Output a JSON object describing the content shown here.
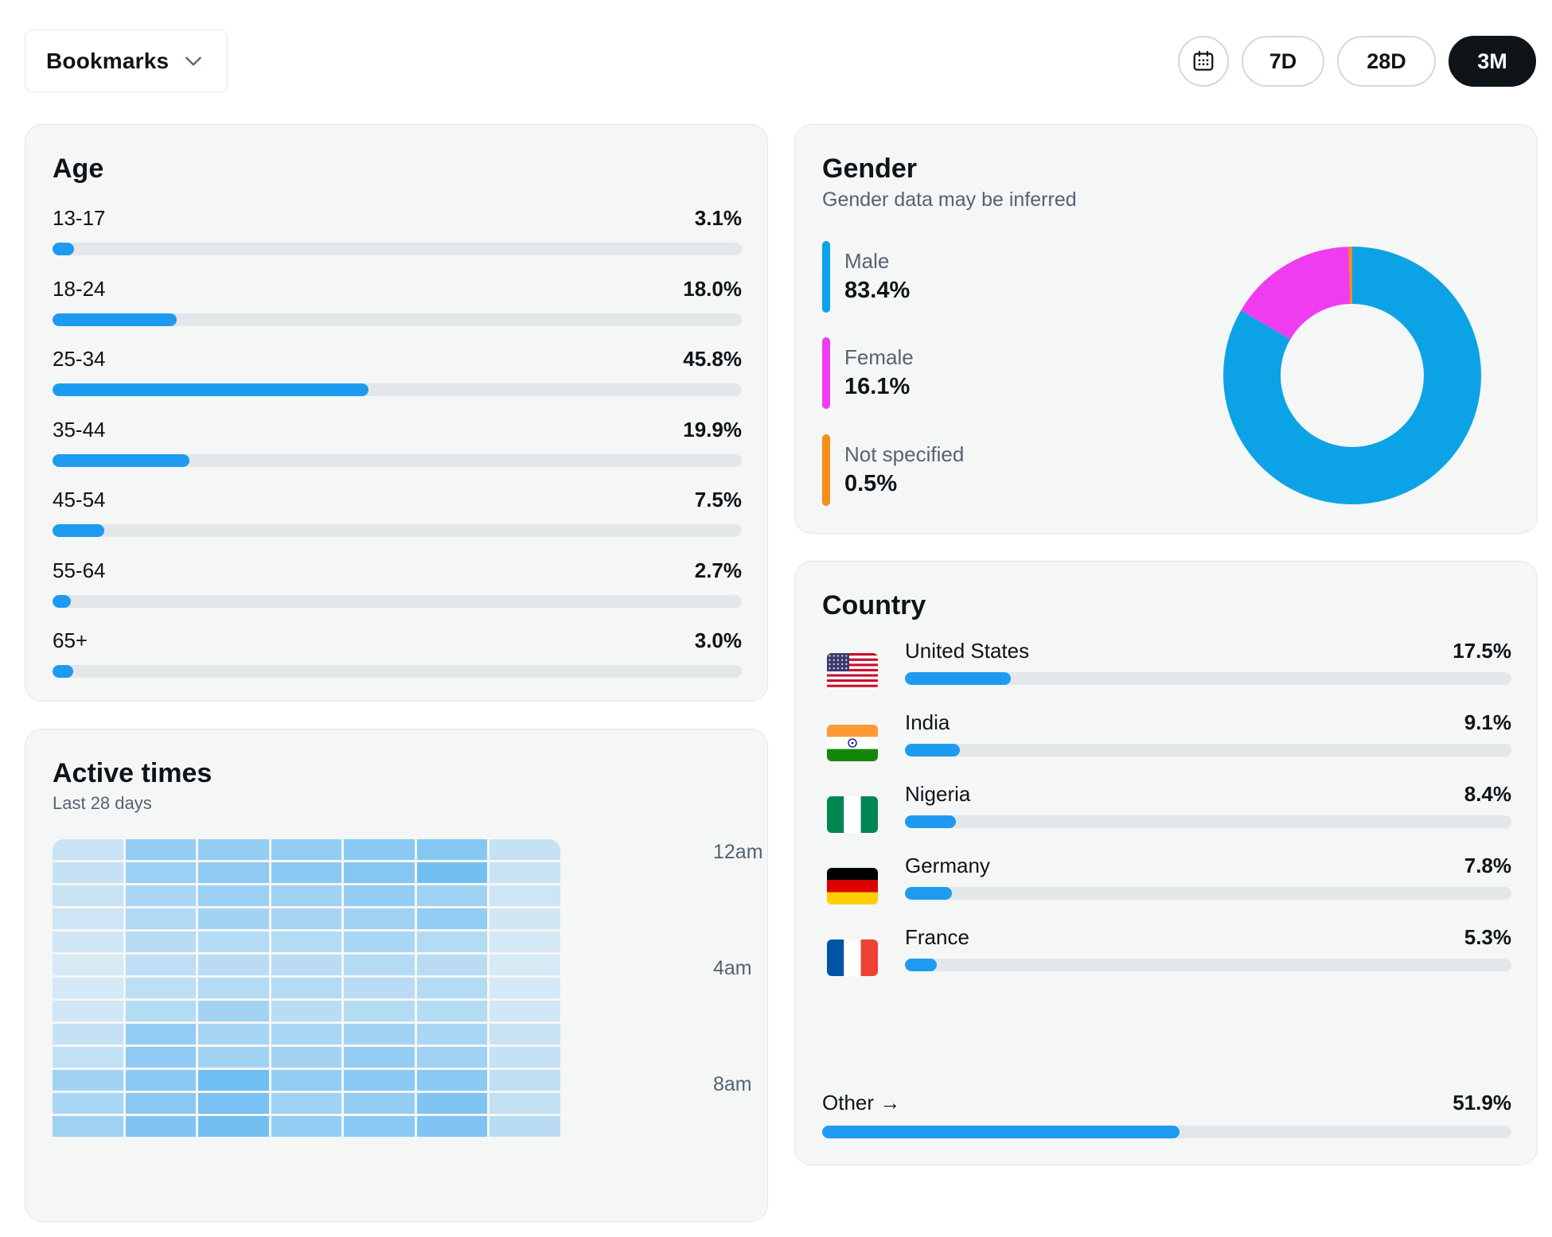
{
  "metric_selector": {
    "label": "Bookmarks",
    "icon": "chevron-down-icon"
  },
  "date_range": {
    "calendar_icon": "calendar-icon",
    "options": [
      "7D",
      "28D",
      "3M"
    ],
    "selected": "3M"
  },
  "age": {
    "title": "Age",
    "rows": [
      {
        "label": "13-17",
        "value": "3.1%",
        "percent": 3.1
      },
      {
        "label": "18-24",
        "value": "18.0%",
        "percent": 18.0
      },
      {
        "label": "25-34",
        "value": "45.8%",
        "percent": 45.8
      },
      {
        "label": "35-44",
        "value": "19.9%",
        "percent": 19.9
      },
      {
        "label": "45-54",
        "value": "7.5%",
        "percent": 7.5
      },
      {
        "label": "55-64",
        "value": "2.7%",
        "percent": 2.7
      },
      {
        "label": "65+",
        "value": "3.0%",
        "percent": 3.0
      }
    ]
  },
  "gender": {
    "title": "Gender",
    "subtitle": "Gender data may be inferred",
    "items": [
      {
        "label": "Male",
        "value": "83.4%",
        "percent": 83.4,
        "color": "#0ca3e6"
      },
      {
        "label": "Female",
        "value": "16.1%",
        "percent": 16.1,
        "color": "#f03cf0"
      },
      {
        "label": "Not specified",
        "value": "0.5%",
        "percent": 0.5,
        "color": "#f48d1a"
      }
    ]
  },
  "country": {
    "title": "Country",
    "rows": [
      {
        "name": "United States",
        "value": "17.5%",
        "percent": 17.5,
        "flag": "us-flag-icon"
      },
      {
        "name": "India",
        "value": "9.1%",
        "percent": 9.1,
        "flag": "india-flag-icon"
      },
      {
        "name": "Nigeria",
        "value": "8.4%",
        "percent": 8.4,
        "flag": "nigeria-flag-icon"
      },
      {
        "name": "Germany",
        "value": "7.8%",
        "percent": 7.8,
        "flag": "germany-flag-icon"
      },
      {
        "name": "France",
        "value": "5.3%",
        "percent": 5.3,
        "flag": "france-flag-icon"
      }
    ],
    "other": {
      "name": "Other →",
      "value": "51.9%",
      "percent": 51.9
    }
  },
  "active_times": {
    "title": "Active times",
    "subtitle": "Last 28 days",
    "hour_labels": [
      "12am",
      "4am",
      "8am"
    ],
    "bar_color": "#1d9bf0",
    "intensity": [
      [
        0.2,
        0.45,
        0.45,
        0.45,
        0.5,
        0.52,
        0.22
      ],
      [
        0.22,
        0.42,
        0.48,
        0.5,
        0.52,
        0.6,
        0.2
      ],
      [
        0.2,
        0.35,
        0.42,
        0.4,
        0.45,
        0.4,
        0.18
      ],
      [
        0.18,
        0.32,
        0.38,
        0.36,
        0.4,
        0.45,
        0.16
      ],
      [
        0.16,
        0.28,
        0.3,
        0.3,
        0.35,
        0.3,
        0.15
      ],
      [
        0.14,
        0.26,
        0.28,
        0.28,
        0.3,
        0.28,
        0.14
      ],
      [
        0.15,
        0.26,
        0.3,
        0.3,
        0.28,
        0.3,
        0.15
      ],
      [
        0.16,
        0.3,
        0.38,
        0.28,
        0.3,
        0.3,
        0.16
      ],
      [
        0.22,
        0.45,
        0.36,
        0.35,
        0.38,
        0.35,
        0.2
      ],
      [
        0.24,
        0.48,
        0.38,
        0.38,
        0.45,
        0.4,
        0.22
      ],
      [
        0.38,
        0.5,
        0.62,
        0.45,
        0.5,
        0.5,
        0.25
      ],
      [
        0.35,
        0.5,
        0.58,
        0.4,
        0.45,
        0.55,
        0.24
      ],
      [
        0.4,
        0.55,
        0.6,
        0.45,
        0.5,
        0.55,
        0.28
      ]
    ]
  }
}
